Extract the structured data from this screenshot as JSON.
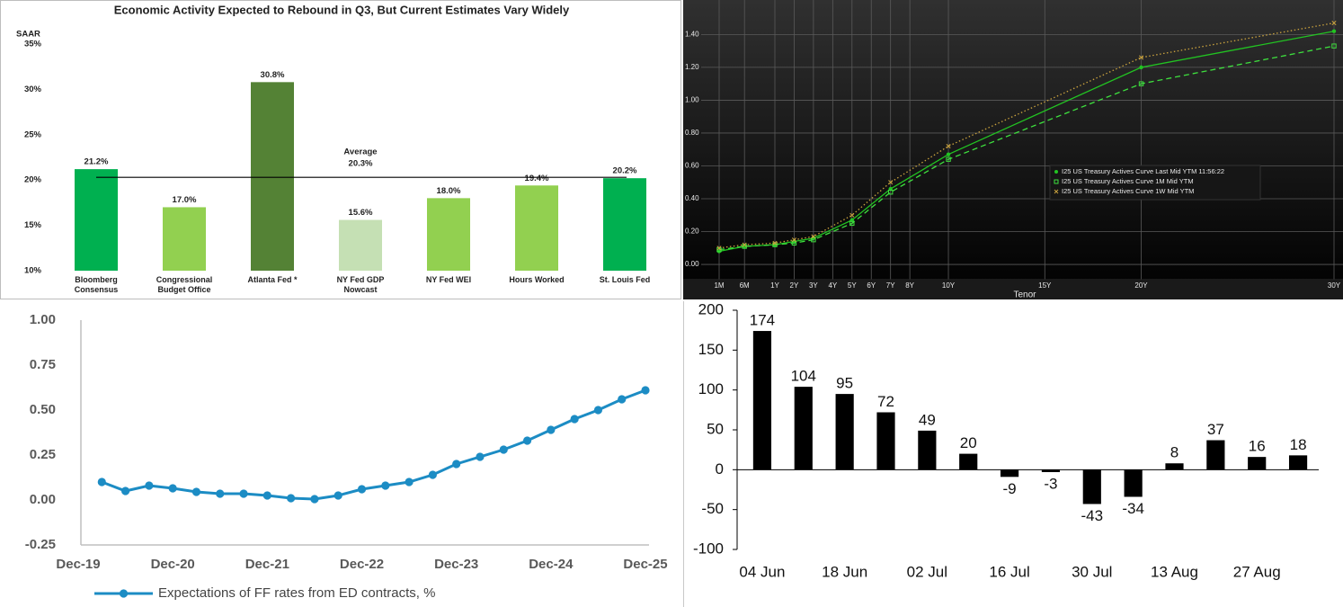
{
  "chart_data": [
    {
      "type": "bar",
      "title": "Economic Activity Expected to Rebound in Q3, But Current Estimates Vary Widely",
      "y_label": "SAAR",
      "categories": [
        "Bloomberg Consensus",
        "Congressional Budget Office",
        "Atlanta Fed *",
        "NY Fed GDP Nowcast",
        "NY Fed WEI",
        "Hours Worked",
        "St. Louis Fed"
      ],
      "values": [
        21.2,
        17.0,
        30.8,
        15.6,
        18.0,
        19.4,
        20.2
      ],
      "value_labels": [
        "21.2%",
        "17.0%",
        "30.8%",
        "15.6%",
        "18.0%",
        "19.4%",
        "20.2%"
      ],
      "colors": [
        "#00b050",
        "#92d050",
        "#548235",
        "#c5e0b4",
        "#92d050",
        "#92d050",
        "#00b050"
      ],
      "ylim": [
        10,
        35
      ],
      "yticks": [
        {
          "value": 10,
          "label": "10%"
        },
        {
          "value": 15,
          "label": "15%"
        },
        {
          "value": 20,
          "label": "20%"
        },
        {
          "value": 25,
          "label": "25%"
        },
        {
          "value": 30,
          "label": "30%"
        },
        {
          "value": 35,
          "label": "35%"
        }
      ],
      "reference_line": {
        "label": "Average",
        "value": 20.3,
        "value_label": "20.3%",
        "color": "#000000"
      }
    },
    {
      "type": "line",
      "x_label": "Tenor",
      "x": [
        0.0833,
        0.5,
        1,
        2,
        3,
        5,
        7,
        10,
        20,
        30
      ],
      "xlim": [
        0.0833,
        30
      ],
      "xticks": [
        {
          "value": 0.0833,
          "label": "1M"
        },
        {
          "value": 0.5,
          "label": "6M"
        },
        {
          "value": 1,
          "label": "1Y"
        },
        {
          "value": 2,
          "label": "2Y"
        },
        {
          "value": 3,
          "label": "3Y"
        },
        {
          "value": 4,
          "label": "4Y"
        },
        {
          "value": 5,
          "label": "5Y"
        },
        {
          "value": 6,
          "label": "6Y"
        },
        {
          "value": 7,
          "label": "7Y"
        },
        {
          "value": 8,
          "label": "8Y"
        },
        {
          "value": 10,
          "label": "10Y"
        },
        {
          "value": 15,
          "label": "15Y"
        },
        {
          "value": 20,
          "label": "20Y"
        },
        {
          "value": 30,
          "label": "30Y"
        }
      ],
      "ylim": [
        -0.09,
        1.61
      ],
      "yticks": [
        {
          "value": 0,
          "label": "0.00"
        },
        {
          "value": 0.2,
          "label": "0.20"
        },
        {
          "value": 0.4,
          "label": "0.40"
        },
        {
          "value": 0.6,
          "label": "0.60"
        },
        {
          "value": 0.8,
          "label": "0.80"
        },
        {
          "value": 1.0,
          "label": "1.00"
        },
        {
          "value": 1.2,
          "label": "1.20"
        },
        {
          "value": 1.4,
          "label": "1.40"
        }
      ],
      "grid": true,
      "background": "#000000",
      "legend": "center",
      "series": [
        {
          "name": "I25 US Treasury Actives Curve Last Mid YTM 11:56:22",
          "color": "#22c322",
          "line_style": "solid",
          "marker": "circle",
          "values": [
            0.08,
            0.11,
            0.12,
            0.14,
            0.16,
            0.27,
            0.46,
            0.67,
            1.2,
            1.42
          ]
        },
        {
          "name": "I25 US Treasury Actives Curve 1M Mid YTM",
          "color": "#3ee03e",
          "line_style": "dashed",
          "marker": "square",
          "values": [
            0.09,
            0.11,
            0.12,
            0.13,
            0.15,
            0.25,
            0.44,
            0.64,
            1.1,
            1.33
          ]
        },
        {
          "name": "I25 US Treasury Actives Curve 1W Mid YTM",
          "color": "#c9a23e",
          "line_style": "dotted",
          "marker": "x",
          "values": [
            0.1,
            0.12,
            0.13,
            0.15,
            0.17,
            0.3,
            0.5,
            0.72,
            1.26,
            1.47
          ]
        }
      ]
    },
    {
      "type": "line",
      "x": [
        "Mar-20",
        "Jun-20",
        "Sep-20",
        "Dec-20",
        "Mar-21",
        "Jun-21",
        "Sep-21",
        "Dec-21",
        "Mar-22",
        "Jun-22",
        "Sep-22",
        "Dec-22",
        "Mar-23",
        "Jun-23",
        "Sep-23",
        "Dec-23",
        "Mar-24",
        "Jun-24",
        "Sep-24",
        "Dec-24",
        "Mar-25",
        "Jun-25",
        "Sep-25",
        "Dec-25"
      ],
      "xlim": [
        "Dec-19",
        "Dec-25"
      ],
      "xticks": [
        "Dec-19",
        "Dec-20",
        "Dec-21",
        "Dec-22",
        "Dec-23",
        "Dec-24",
        "Dec-25"
      ],
      "ylim": [
        -0.25,
        1.0
      ],
      "yticks": [
        {
          "value": -0.25,
          "label": "-0.25"
        },
        {
          "value": 0,
          "label": "0.00"
        },
        {
          "value": 0.25,
          "label": "0.25"
        },
        {
          "value": 0.5,
          "label": "0.50"
        },
        {
          "value": 0.75,
          "label": "0.75"
        },
        {
          "value": 1.0,
          "label": "1.00"
        }
      ],
      "legend": "bottom",
      "series": [
        {
          "name": "Expectations of FF rates from ED contracts, %",
          "color": "#1c8cc4",
          "line_style": "solid",
          "marker": "circle",
          "values": [
            0.1,
            0.05,
            0.08,
            0.065,
            0.045,
            0.035,
            0.035,
            0.025,
            0.01,
            0.005,
            0.025,
            0.06,
            0.08,
            0.1,
            0.14,
            0.2,
            0.24,
            0.28,
            0.33,
            0.39,
            0.45,
            0.5,
            0.56,
            0.61
          ]
        }
      ]
    },
    {
      "type": "bar",
      "categories": [
        "04 Jun",
        null,
        "18 Jun",
        null,
        "02 Jul",
        null,
        "16 Jul",
        null,
        "30 Jul",
        null,
        "13 Aug",
        null,
        "27 Aug",
        null
      ],
      "values": [
        174,
        104,
        95,
        72,
        49,
        20,
        -9,
        -3,
        -43,
        -34,
        8,
        37,
        16,
        18
      ],
      "color": "#000000",
      "ylim": [
        -100,
        200
      ],
      "yticks": [
        -100,
        -50,
        0,
        50,
        100,
        150,
        200
      ]
    }
  ]
}
